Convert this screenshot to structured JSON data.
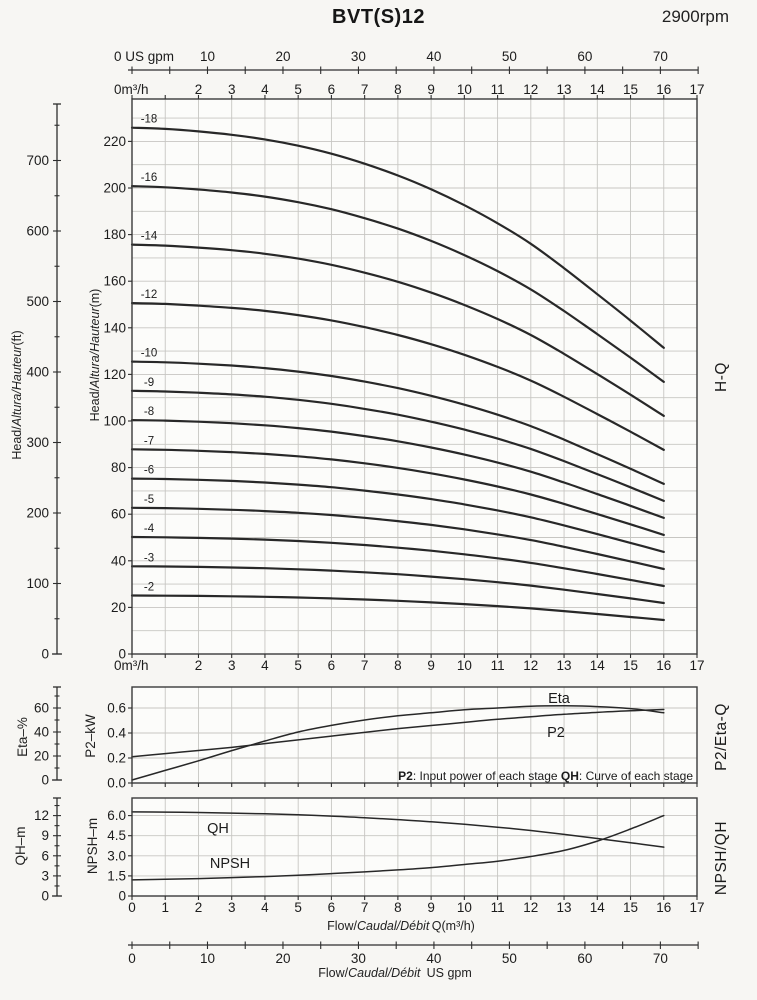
{
  "header": {
    "title": "BVT(S)12",
    "rpm": "2900rpm"
  },
  "labels": {
    "head_pre": "Head/",
    "head_mid": "Altura/Hauteur",
    "head_ft_unit": "(ft)",
    "head_m_unit": "(m)",
    "eta_axis": "Eta–%",
    "p2_axis": "P2–kW",
    "qh_axis": "QH–m",
    "npsh_axis": "NPSH–m",
    "right_hq": "H-Q",
    "right_p2eta": "P2/Eta-Q",
    "right_npshqh": "NPSH/QH",
    "flow_pre": "Flow/",
    "flow_mid": "Caudal/Débit",
    "flow_q_unit": " Q(m³/h)",
    "flow_gpm_unit": " US gpm",
    "x_zero_m3h": "0m³/h",
    "x_zero_gpm": "0 US gpm"
  },
  "annotation": {
    "p2_key": "P2",
    "p2_text": ": Input power of each stage ",
    "qh_key": "QH",
    "qh_text": ": Curve of each stage"
  },
  "colors": {
    "curve": "#282828",
    "grid": "#c7c6c2",
    "border": "#3a3a3a",
    "axis": "#2e2e2e",
    "text": "#1c1c1c",
    "plot_bg": "#fcfcfa",
    "page_bg": "#f7f6f3"
  },
  "chart_data": [
    {
      "id": "hq",
      "type": "line",
      "right_label": "H-Q",
      "x_m3h": [
        0,
        1,
        2,
        3,
        4,
        5,
        6,
        7,
        8,
        9,
        10,
        11,
        12,
        13,
        14,
        15,
        16
      ],
      "per_stage_head_m": [
        12.55,
        12.52,
        12.46,
        12.38,
        12.27,
        12.12,
        11.93,
        11.69,
        11.41,
        11.08,
        10.7,
        10.27,
        9.78,
        9.2,
        8.58,
        7.95,
        7.3
      ],
      "stages": [
        2,
        3,
        4,
        5,
        6,
        7,
        8,
        9,
        10,
        12,
        14,
        16,
        18
      ],
      "stage_labels": [
        "-2",
        "-3",
        "-4",
        "-5",
        "-6",
        "-7",
        "-8",
        "-9",
        "-10",
        "-12",
        "-14",
        "-16",
        "-18"
      ],
      "y_axis_m_ticks": [
        0,
        20,
        40,
        60,
        80,
        100,
        120,
        140,
        160,
        180,
        200,
        220
      ],
      "y_axis_ft_ticks": [
        0,
        100,
        200,
        300,
        400,
        500,
        600,
        700
      ],
      "x_axis_m3h_ticks": [
        2,
        3,
        4,
        5,
        6,
        7,
        8,
        9,
        10,
        11,
        12,
        13,
        14,
        15,
        16,
        17
      ],
      "x_axis_gpm_ticks": [
        10,
        20,
        30,
        40,
        50,
        60,
        70
      ],
      "xlim_m3h": [
        0,
        17
      ],
      "ylim_m": [
        0,
        238
      ],
      "grid": "on"
    },
    {
      "id": "p2eta",
      "type": "line",
      "right_label": "P2/Eta-Q",
      "x_m3h": [
        0,
        1,
        2,
        3,
        4,
        5,
        6,
        7,
        8,
        9,
        10,
        11,
        12,
        13,
        14,
        15,
        16
      ],
      "series": [
        {
          "name": "Eta",
          "unit": "%",
          "values": [
            0,
            8,
            16,
            24.5,
            32.5,
            40,
            45.5,
            50,
            53.5,
            56,
            58.5,
            60,
            61.5,
            61.8,
            61.2,
            59.5,
            56
          ]
        },
        {
          "name": "P2",
          "unit": "kW",
          "values": [
            0.21,
            0.235,
            0.26,
            0.285,
            0.315,
            0.345,
            0.375,
            0.405,
            0.435,
            0.46,
            0.485,
            0.51,
            0.53,
            0.55,
            0.565,
            0.578,
            0.588
          ]
        }
      ],
      "eta_axis_ticks": [
        0,
        20,
        40,
        60
      ],
      "p2_axis_ticks": [
        "0.0",
        "0.2",
        "0.4",
        "0.6"
      ],
      "ylim_p2_kw": [
        0,
        0.77
      ],
      "ylim_eta_pct": [
        0,
        78
      ],
      "grid": "on"
    },
    {
      "id": "npshqh",
      "type": "line",
      "right_label": "NPSH/QH",
      "x_m3h": [
        0,
        1,
        2,
        3,
        4,
        5,
        6,
        7,
        8,
        9,
        10,
        11,
        12,
        13,
        14,
        15,
        16
      ],
      "series": [
        {
          "name": "QH",
          "unit": "m (QH-m scale)",
          "values": [
            12.55,
            12.52,
            12.46,
            12.38,
            12.27,
            12.12,
            11.93,
            11.69,
            11.41,
            11.08,
            10.7,
            10.27,
            9.78,
            9.2,
            8.58,
            7.95,
            7.3
          ]
        },
        {
          "name": "NPSH",
          "unit": "m (NPSH-m scale)",
          "values": [
            1.2,
            1.25,
            1.3,
            1.37,
            1.45,
            1.55,
            1.67,
            1.8,
            1.95,
            2.12,
            2.35,
            2.6,
            2.95,
            3.4,
            4.1,
            5.0,
            6.0
          ]
        }
      ],
      "qh_axis_ticks": [
        0,
        3,
        6,
        9,
        12
      ],
      "npsh_axis_ticks": [
        "0",
        "1.5",
        "3.0",
        "4.5",
        "6.0"
      ],
      "x_axis_ticks": [
        0,
        1,
        2,
        3,
        4,
        5,
        6,
        7,
        8,
        9,
        10,
        11,
        12,
        13,
        14,
        15,
        16,
        17
      ],
      "x_axis_gpm_ticks": [
        0,
        10,
        20,
        30,
        40,
        50,
        60,
        70
      ],
      "ylim_npsh_m": [
        0,
        7.3
      ],
      "ylim_qh_m": [
        0,
        14.6
      ],
      "grid": "on"
    }
  ]
}
